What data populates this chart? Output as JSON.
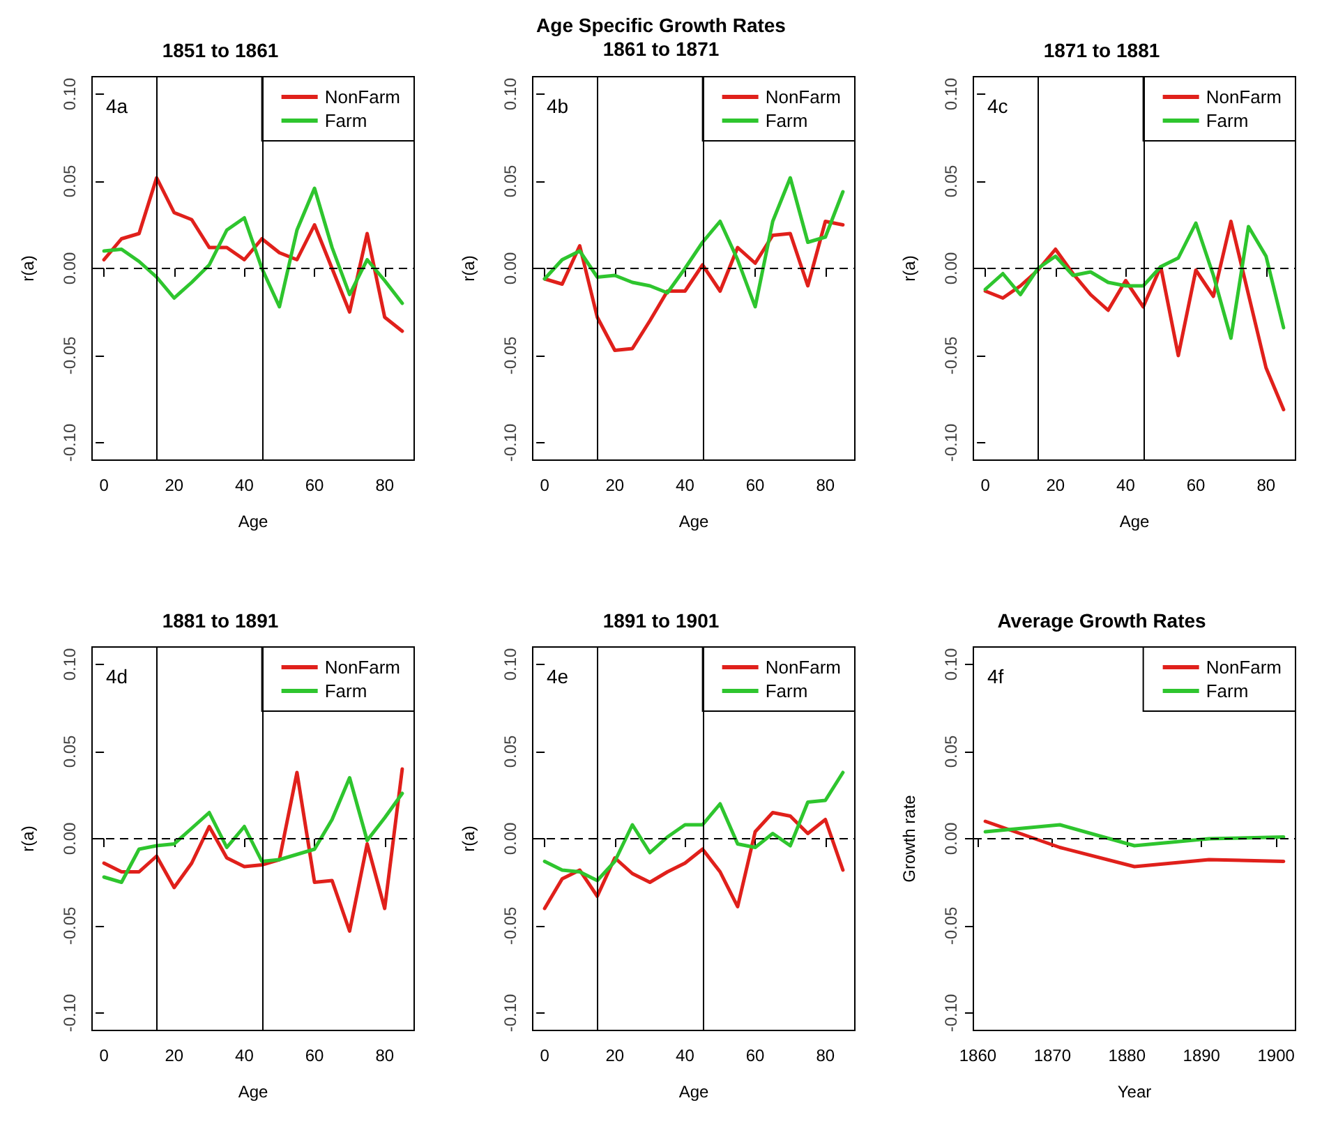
{
  "chart_data": [
    {
      "type": "line",
      "title": "1851 to 1861",
      "xlabel": "Age",
      "ylabel": "r(a)",
      "annotations": [
        "4a"
      ],
      "legend": "top right",
      "x": [
        0,
        5,
        10,
        15,
        20,
        25,
        30,
        35,
        40,
        45,
        50,
        55,
        60,
        65,
        70,
        75,
        80,
        85
      ],
      "xlim": [
        -3.4,
        88.4
      ],
      "xticks": [
        0,
        20,
        40,
        60,
        80
      ],
      "ylim": [
        -0.11,
        0.11
      ],
      "yticks": [
        {
          "value": -0.1,
          "label": "-0.10"
        },
        {
          "value": -0.05,
          "label": "-0.05"
        },
        {
          "value": 0,
          "label": "0.00"
        },
        {
          "value": 0.05,
          "label": "0.05"
        },
        {
          "value": 0.1,
          "label": "0.10"
        }
      ],
      "ref_lines": [
        {
          "axis": "x",
          "value": 15,
          "color": "#000000",
          "line_style": "solid"
        },
        {
          "axis": "x",
          "value": 45,
          "color": "#000000",
          "line_style": "solid"
        },
        {
          "axis": "y",
          "value": 0,
          "color": "#000000",
          "line_style": "dashed"
        }
      ],
      "series": [
        {
          "name": "NonFarm",
          "color": "#e0201b",
          "values": [
            0.005,
            0.017,
            0.02,
            0.052,
            0.032,
            0.028,
            0.012,
            0.012,
            0.005,
            0.017,
            0.009,
            0.005,
            0.025,
            0.0,
            -0.025,
            0.02,
            -0.028,
            -0.036
          ]
        },
        {
          "name": "Farm",
          "color": "#2ec52e",
          "values": [
            0.01,
            0.011,
            0.004,
            -0.005,
            -0.017,
            -0.008,
            0.002,
            0.022,
            0.029,
            0.0,
            -0.022,
            0.022,
            0.046,
            0.012,
            -0.015,
            0.005,
            -0.007,
            -0.02
          ]
        }
      ]
    },
    {
      "type": "line",
      "title": "Age Specific Growth Rates",
      "subtitle": "1861 to 1871",
      "xlabel": "Age",
      "ylabel": "r(a)",
      "annotations": [
        "4b"
      ],
      "legend": "top right",
      "x": [
        0,
        5,
        10,
        15,
        20,
        25,
        30,
        35,
        40,
        45,
        50,
        55,
        60,
        65,
        70,
        75,
        80,
        85
      ],
      "xlim": [
        -3.4,
        88.4
      ],
      "xticks": [
        0,
        20,
        40,
        60,
        80
      ],
      "ylim": [
        -0.11,
        0.11
      ],
      "yticks": [
        {
          "value": -0.1,
          "label": "-0.10"
        },
        {
          "value": -0.05,
          "label": "-0.05"
        },
        {
          "value": 0,
          "label": "0.00"
        },
        {
          "value": 0.05,
          "label": "0.05"
        },
        {
          "value": 0.1,
          "label": "0.10"
        }
      ],
      "ref_lines": [
        {
          "axis": "x",
          "value": 15,
          "color": "#000000",
          "line_style": "solid"
        },
        {
          "axis": "x",
          "value": 45,
          "color": "#000000",
          "line_style": "solid"
        },
        {
          "axis": "y",
          "value": 0,
          "color": "#000000",
          "line_style": "dashed"
        }
      ],
      "series": [
        {
          "name": "NonFarm",
          "color": "#e0201b",
          "values": [
            -0.006,
            -0.009,
            0.013,
            -0.028,
            -0.047,
            -0.046,
            -0.03,
            -0.013,
            -0.013,
            0.002,
            -0.013,
            0.012,
            0.003,
            0.019,
            0.02,
            -0.01,
            0.027,
            0.025
          ]
        },
        {
          "name": "Farm",
          "color": "#2ec52e",
          "values": [
            -0.006,
            0.005,
            0.01,
            -0.005,
            -0.004,
            -0.008,
            -0.01,
            -0.014,
            0.0,
            0.015,
            0.027,
            0.005,
            -0.022,
            0.027,
            0.052,
            0.015,
            0.018,
            0.044
          ]
        }
      ]
    },
    {
      "type": "line",
      "title": "1871 to 1881",
      "xlabel": "Age",
      "ylabel": "r(a)",
      "annotations": [
        "4c"
      ],
      "legend": "top right",
      "x": [
        0,
        5,
        10,
        15,
        20,
        25,
        30,
        35,
        40,
        45,
        50,
        55,
        60,
        65,
        70,
        75,
        80,
        85
      ],
      "xlim": [
        -3.4,
        88.4
      ],
      "xticks": [
        0,
        20,
        40,
        60,
        80
      ],
      "ylim": [
        -0.11,
        0.11
      ],
      "yticks": [
        {
          "value": -0.1,
          "label": "-0.10"
        },
        {
          "value": -0.05,
          "label": "-0.05"
        },
        {
          "value": 0,
          "label": "0.00"
        },
        {
          "value": 0.05,
          "label": "0.05"
        },
        {
          "value": 0.1,
          "label": "0.10"
        }
      ],
      "ref_lines": [
        {
          "axis": "x",
          "value": 15,
          "color": "#000000",
          "line_style": "solid"
        },
        {
          "axis": "x",
          "value": 45,
          "color": "#000000",
          "line_style": "solid"
        },
        {
          "axis": "y",
          "value": 0,
          "color": "#000000",
          "line_style": "dashed"
        }
      ],
      "series": [
        {
          "name": "NonFarm",
          "color": "#e0201b",
          "values": [
            -0.013,
            -0.017,
            -0.01,
            -0.001,
            0.011,
            -0.003,
            -0.015,
            -0.024,
            -0.007,
            -0.022,
            0.001,
            -0.05,
            -0.001,
            -0.016,
            0.027,
            -0.015,
            -0.057,
            -0.081
          ]
        },
        {
          "name": "Farm",
          "color": "#2ec52e",
          "values": [
            -0.012,
            -0.003,
            -0.015,
            0.0,
            0.007,
            -0.004,
            -0.002,
            -0.008,
            -0.01,
            -0.01,
            0.001,
            0.006,
            0.026,
            -0.004,
            -0.04,
            0.024,
            0.007,
            -0.034
          ]
        }
      ]
    },
    {
      "type": "line",
      "title": "1881 to 1891",
      "xlabel": "Age",
      "ylabel": "r(a)",
      "annotations": [
        "4d"
      ],
      "legend": "top right",
      "x": [
        0,
        5,
        10,
        15,
        20,
        25,
        30,
        35,
        40,
        45,
        50,
        55,
        60,
        65,
        70,
        75,
        80,
        85
      ],
      "xlim": [
        -3.4,
        88.4
      ],
      "xticks": [
        0,
        20,
        40,
        60,
        80
      ],
      "ylim": [
        -0.11,
        0.11
      ],
      "yticks": [
        {
          "value": -0.1,
          "label": "-0.10"
        },
        {
          "value": -0.05,
          "label": "-0.05"
        },
        {
          "value": 0,
          "label": "0.00"
        },
        {
          "value": 0.05,
          "label": "0.05"
        },
        {
          "value": 0.1,
          "label": "0.10"
        }
      ],
      "ref_lines": [
        {
          "axis": "x",
          "value": 15,
          "color": "#000000",
          "line_style": "solid"
        },
        {
          "axis": "x",
          "value": 45,
          "color": "#000000",
          "line_style": "solid"
        },
        {
          "axis": "y",
          "value": 0,
          "color": "#000000",
          "line_style": "dashed"
        }
      ],
      "series": [
        {
          "name": "NonFarm",
          "color": "#e0201b",
          "values": [
            -0.014,
            -0.019,
            -0.019,
            -0.01,
            -0.028,
            -0.014,
            0.007,
            -0.011,
            -0.016,
            -0.015,
            -0.012,
            0.038,
            -0.025,
            -0.024,
            -0.053,
            -0.003,
            -0.04,
            0.04
          ]
        },
        {
          "name": "Farm",
          "color": "#2ec52e",
          "values": [
            -0.022,
            -0.025,
            -0.006,
            -0.004,
            -0.003,
            0.006,
            0.015,
            -0.005,
            0.007,
            -0.013,
            -0.012,
            -0.009,
            -0.006,
            0.011,
            0.035,
            -0.001,
            0.012,
            0.026
          ]
        }
      ]
    },
    {
      "type": "line",
      "title": "1891 to 1901",
      "xlabel": "Age",
      "ylabel": "r(a)",
      "annotations": [
        "4e"
      ],
      "legend": "top right",
      "x": [
        0,
        5,
        10,
        15,
        20,
        25,
        30,
        35,
        40,
        45,
        50,
        55,
        60,
        65,
        70,
        75,
        80,
        85
      ],
      "xlim": [
        -3.4,
        88.4
      ],
      "xticks": [
        0,
        20,
        40,
        60,
        80
      ],
      "ylim": [
        -0.11,
        0.11
      ],
      "yticks": [
        {
          "value": -0.1,
          "label": "-0.10"
        },
        {
          "value": -0.05,
          "label": "-0.05"
        },
        {
          "value": 0,
          "label": "0.00"
        },
        {
          "value": 0.05,
          "label": "0.05"
        },
        {
          "value": 0.1,
          "label": "0.10"
        }
      ],
      "ref_lines": [
        {
          "axis": "x",
          "value": 15,
          "color": "#000000",
          "line_style": "solid"
        },
        {
          "axis": "x",
          "value": 45,
          "color": "#000000",
          "line_style": "solid"
        },
        {
          "axis": "y",
          "value": 0,
          "color": "#000000",
          "line_style": "dashed"
        }
      ],
      "series": [
        {
          "name": "NonFarm",
          "color": "#e0201b",
          "values": [
            -0.04,
            -0.023,
            -0.018,
            -0.033,
            -0.011,
            -0.02,
            -0.025,
            -0.019,
            -0.014,
            -0.006,
            -0.019,
            -0.039,
            0.004,
            0.015,
            0.013,
            0.003,
            0.011,
            -0.018
          ]
        },
        {
          "name": "Farm",
          "color": "#2ec52e",
          "values": [
            -0.013,
            -0.018,
            -0.019,
            -0.024,
            -0.013,
            0.008,
            -0.008,
            0.001,
            0.008,
            0.008,
            0.02,
            -0.003,
            -0.005,
            0.003,
            -0.004,
            0.021,
            0.022,
            0.038
          ]
        }
      ]
    },
    {
      "type": "line",
      "title": "Average Growth Rates",
      "xlabel": "Year",
      "ylabel": "Growth rate",
      "annotations": [
        "4f"
      ],
      "legend": "top right",
      "x": [
        1861,
        1871,
        1881,
        1891,
        1901
      ],
      "xlim": [
        1859.4,
        1902.6
      ],
      "xticks": [
        1860,
        1870,
        1880,
        1890,
        1900
      ],
      "ylim": [
        -0.11,
        0.11
      ],
      "yticks": [
        {
          "value": -0.1,
          "label": "-0.10"
        },
        {
          "value": -0.05,
          "label": "-0.05"
        },
        {
          "value": 0,
          "label": "0.00"
        },
        {
          "value": 0.05,
          "label": "0.05"
        },
        {
          "value": 0.1,
          "label": "0.10"
        }
      ],
      "ref_lines": [
        {
          "axis": "y",
          "value": 0,
          "color": "#000000",
          "line_style": "dashed"
        }
      ],
      "series": [
        {
          "name": "NonFarm",
          "color": "#e0201b",
          "values": [
            0.01,
            -0.005,
            -0.016,
            -0.012,
            -0.013
          ]
        },
        {
          "name": "Farm",
          "color": "#2ec52e",
          "values": [
            0.004,
            0.008,
            -0.004,
            0.0,
            0.001
          ]
        }
      ]
    }
  ]
}
